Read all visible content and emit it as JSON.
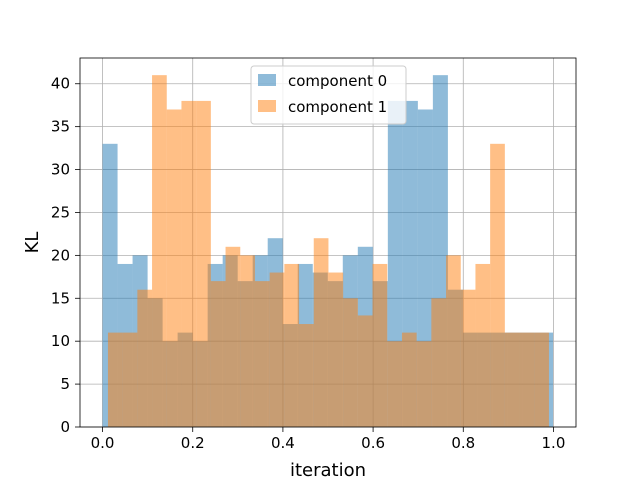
{
  "chart_data": {
    "type": "histogram",
    "xlabel": "iteration",
    "ylabel": "KL",
    "xlim": [
      -0.05,
      1.05
    ],
    "ylim": [
      0,
      43
    ],
    "xticks": [
      0.0,
      0.2,
      0.4,
      0.6,
      0.8,
      1.0
    ],
    "xtick_labels": [
      "0.0",
      "0.2",
      "0.4",
      "0.6",
      "0.8",
      "1.0"
    ],
    "yticks": [
      0,
      5,
      10,
      15,
      20,
      25,
      30,
      35,
      40
    ],
    "ytick_labels": [
      "0",
      "5",
      "10",
      "15",
      "20",
      "25",
      "30",
      "35",
      "40"
    ],
    "grid": true,
    "legend_position": "top-center",
    "series": [
      {
        "name": "component 0",
        "color": "#1f77b4",
        "alpha": 0.5,
        "bin_start": 0.0,
        "bin_width": 0.0333,
        "counts": [
          33,
          19,
          20,
          15,
          10,
          11,
          10,
          19,
          20,
          17,
          20,
          22,
          12,
          19,
          18,
          17,
          20,
          21,
          17,
          38,
          38,
          37,
          41,
          16,
          11,
          11,
          11,
          11,
          11,
          11
        ]
      },
      {
        "name": "component 1",
        "color": "#ff7f0e",
        "alpha": 0.5,
        "bin_start": 0.012,
        "bin_width": 0.0326,
        "counts": [
          11,
          11,
          16,
          41,
          37,
          38,
          38,
          17,
          21,
          20,
          17,
          18,
          19,
          12,
          22,
          18,
          15,
          13,
          19,
          10,
          11,
          10,
          15,
          20,
          16,
          19,
          33,
          11,
          11,
          11
        ]
      }
    ]
  }
}
